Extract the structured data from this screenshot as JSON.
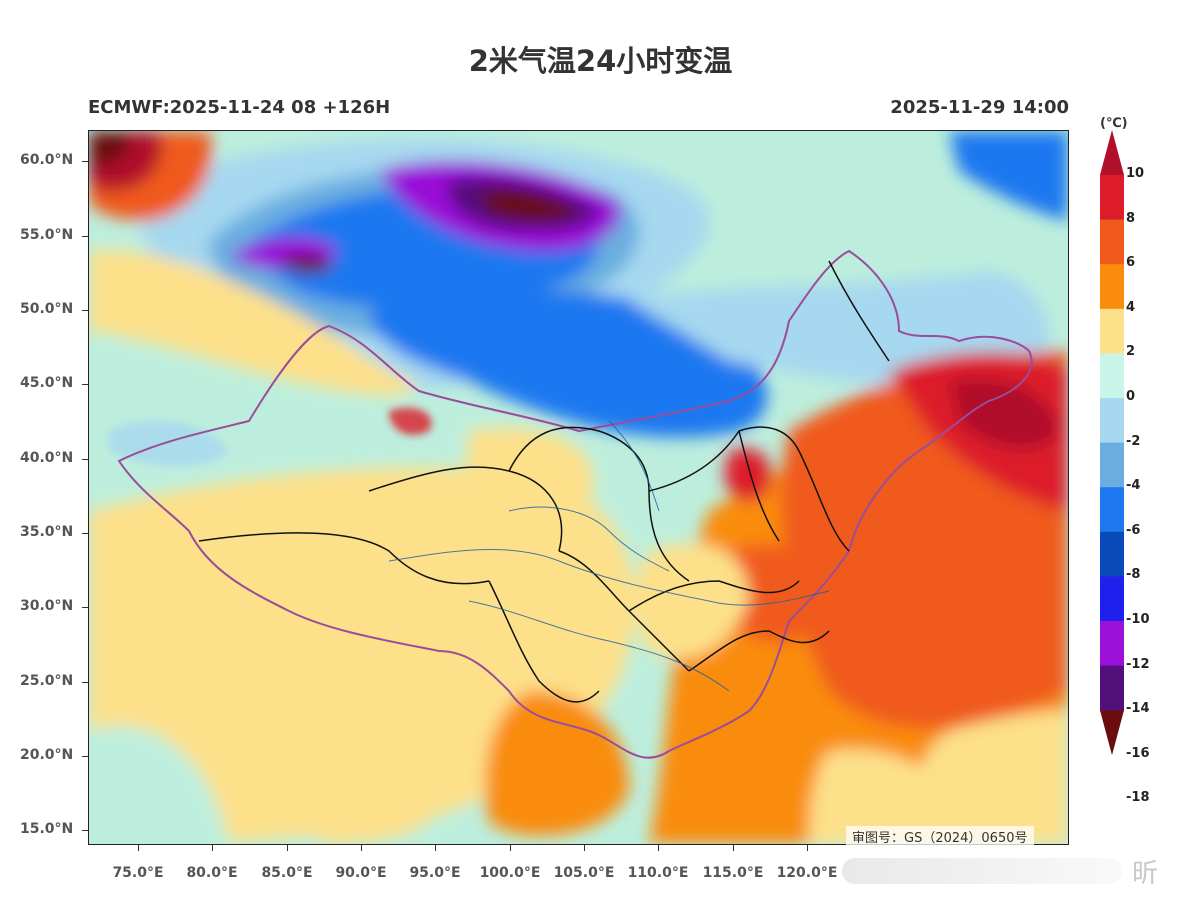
{
  "title": "2米气温24小时变温",
  "model_run": "ECMWF:2025-11-24 08 +126H",
  "valid_time": "2025-11-29 14:00",
  "map": {
    "lat_labels": [
      "60.0°N",
      "55.0°N",
      "50.0°N",
      "45.0°N",
      "40.0°N",
      "35.0°N",
      "30.0°N",
      "25.0°N",
      "20.0°N",
      "15.0°N"
    ],
    "lon_labels": [
      "75.0°E",
      "80.0°E",
      "85.0°E",
      "90.0°E",
      "95.0°E",
      "100.0°E",
      "105.0°E",
      "110.0°E",
      "115.0°E",
      "120.0°E"
    ],
    "extent": {
      "lon_min": 72,
      "lon_max": 125,
      "lat_min": 14,
      "lat_max": 62
    },
    "approval_number": "审图号：GS（2024）0650号"
  },
  "colorbar": {
    "unit": "(℃)",
    "labels": [
      "10",
      "8",
      "6",
      "4",
      "2",
      "0",
      "-2",
      "-4",
      "-6",
      "-8",
      "-10",
      "-12",
      "-14",
      "-16",
      "-18"
    ],
    "colors": [
      "#b0102a",
      "#dd1c2a",
      "#f05a1a",
      "#f98c0a",
      "#fde08a",
      "#c8f5e8",
      "#a6d8f0",
      "#6aaee0",
      "#1e78f0",
      "#0a4ab8",
      "#2020ee",
      "#9a10d8",
      "#52107a",
      "#6b0d0d"
    ]
  },
  "watermark": {
    "text": "昕"
  }
}
